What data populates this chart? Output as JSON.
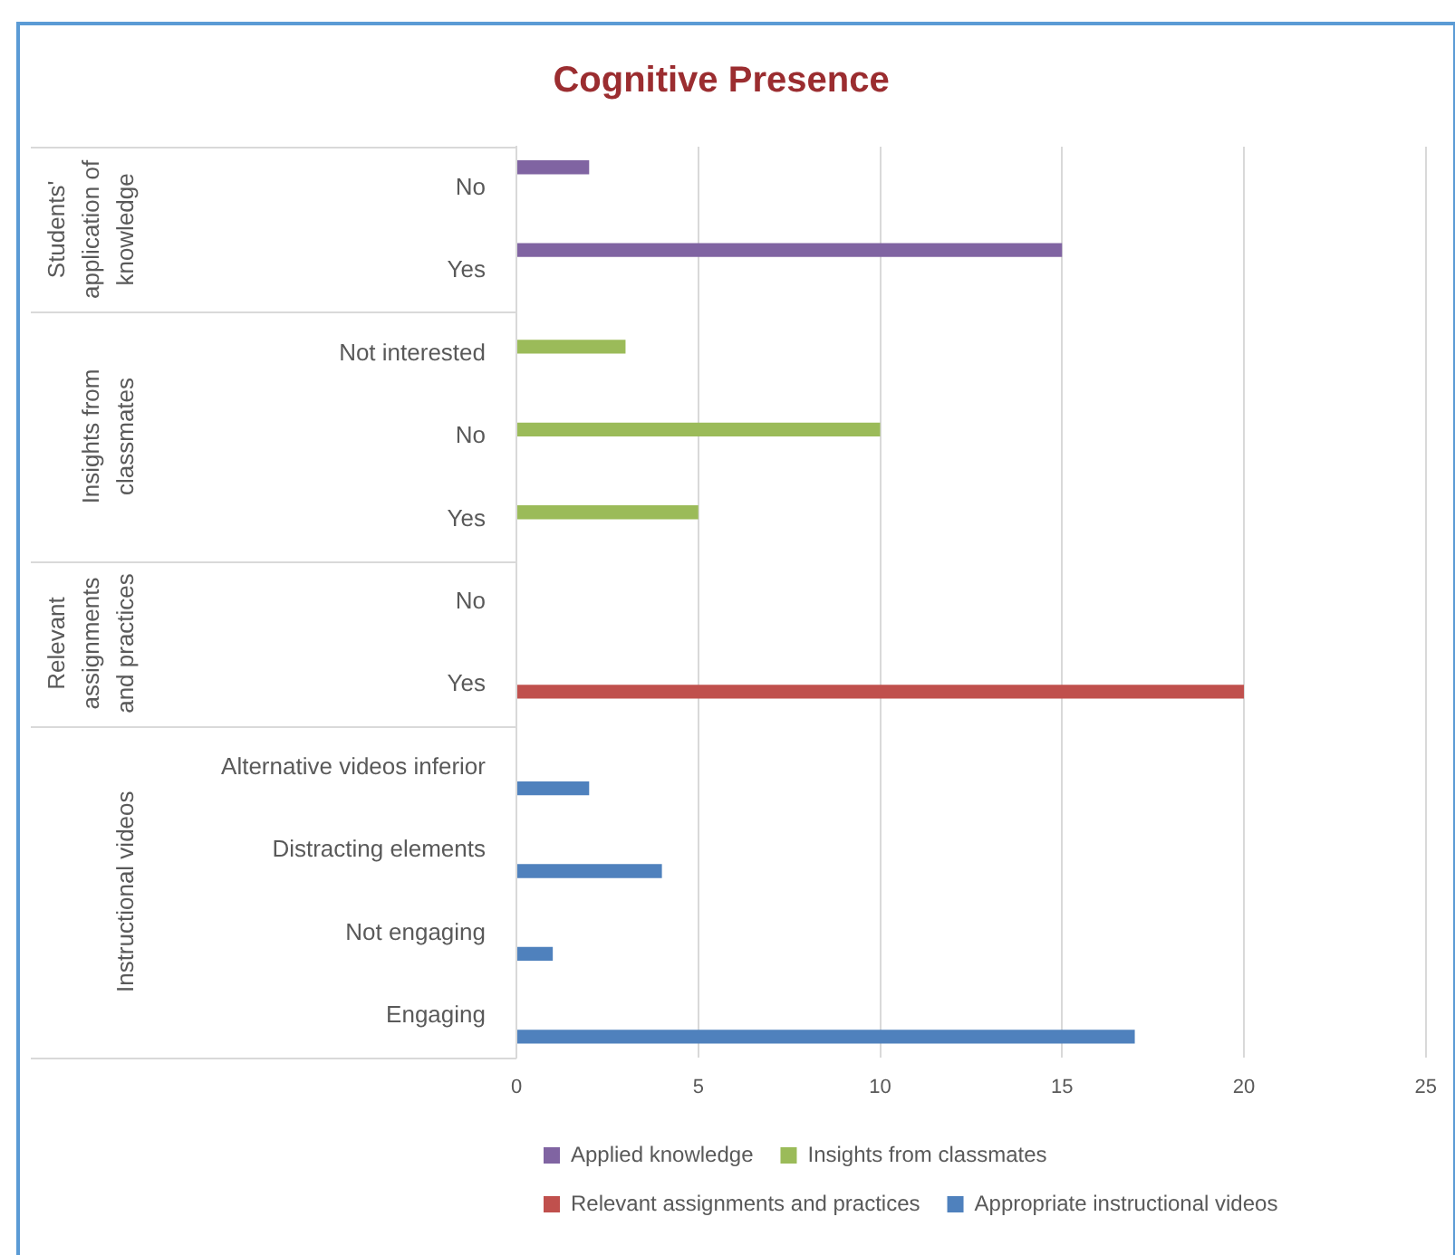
{
  "chart_data": {
    "type": "bar",
    "orientation": "horizontal",
    "title": "Cognitive Presence",
    "categories": [
      "No",
      "Yes",
      "Not interested",
      "No",
      "Yes",
      "No",
      "Yes",
      "Alternative videos inferior",
      "Distracting elements",
      "Not engaging",
      "Engaging"
    ],
    "series": [
      {
        "name": "Applied knowledge",
        "color": "#8064a2",
        "values": [
          2,
          15,
          null,
          null,
          null,
          null,
          null,
          null,
          null,
          null,
          null
        ]
      },
      {
        "name": "Insights from classmates",
        "color": "#9bbb59",
        "values": [
          null,
          null,
          3,
          10,
          5,
          null,
          null,
          null,
          null,
          null,
          null
        ]
      },
      {
        "name": "Relevant assignments and practices",
        "color": "#c0504d",
        "values": [
          null,
          null,
          null,
          null,
          null,
          0,
          20,
          null,
          null,
          null,
          null
        ]
      },
      {
        "name": "Appropriate instructional videos",
        "color": "#4f81bd",
        "values": [
          null,
          null,
          null,
          null,
          null,
          null,
          null,
          2,
          4,
          1,
          17
        ]
      }
    ],
    "xlim": [
      0,
      25
    ],
    "xticks": [
      0,
      5,
      10,
      15,
      20,
      25
    ],
    "grid": "x",
    "legend": "bottom",
    "annotations": [
      "Students' application of knowledge",
      "Insights from classmates",
      "Relevant assignments and practices",
      "Instructional videos"
    ]
  }
}
